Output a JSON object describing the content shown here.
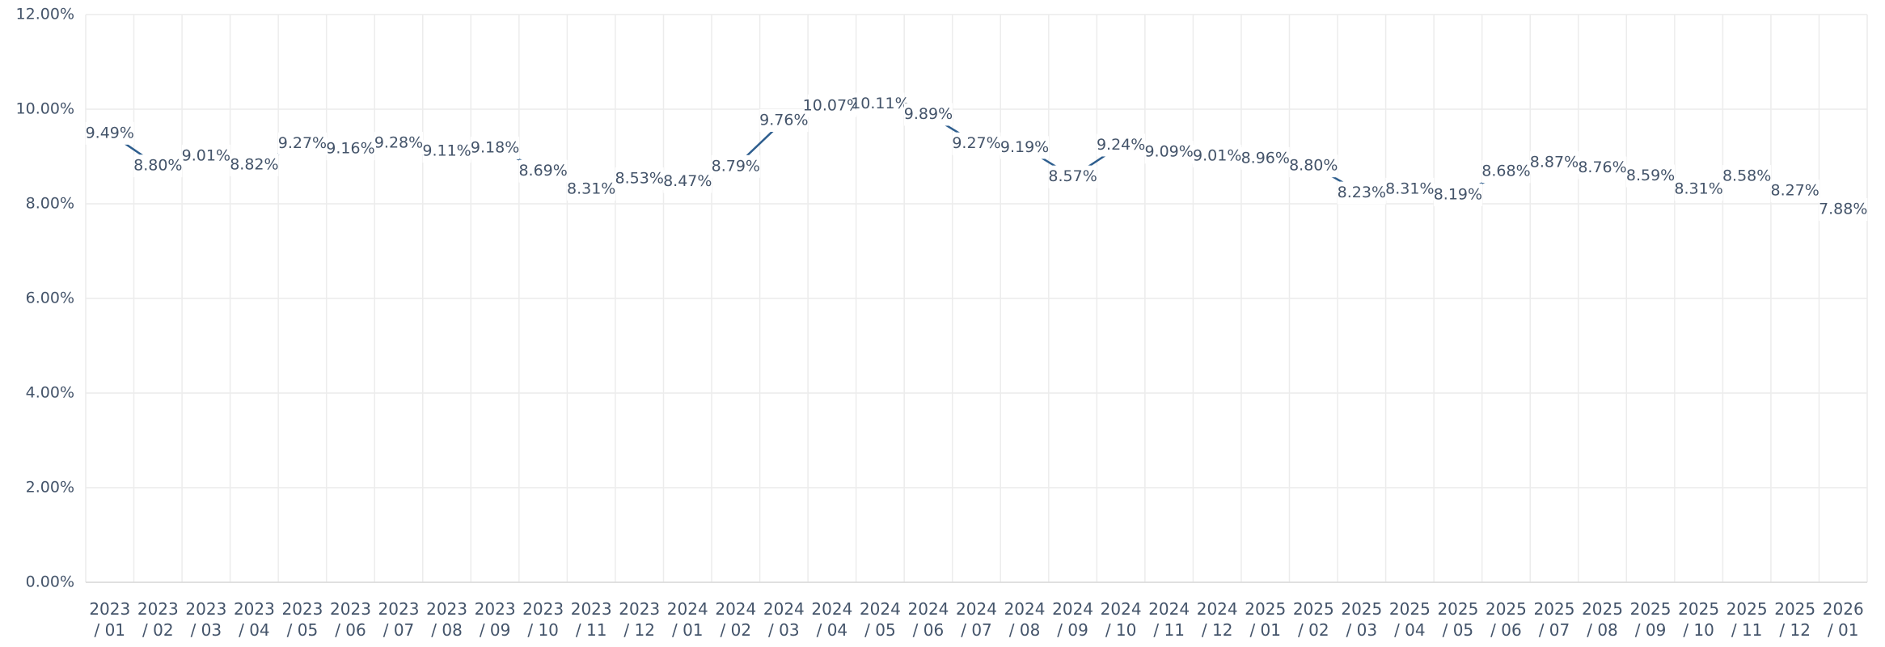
{
  "chart_data": {
    "type": "line",
    "categories": [
      "2023\n/ 01",
      "2023\n/ 02",
      "2023\n/ 03",
      "2023\n/ 04",
      "2023\n/ 05",
      "2023\n/ 06",
      "2023\n/ 07",
      "2023\n/ 08",
      "2023\n/ 09",
      "2023\n/ 10",
      "2023\n/ 11",
      "2023\n/ 12",
      "2024\n/ 01",
      "2024\n/ 02",
      "2024\n/ 03",
      "2024\n/ 04",
      "2024\n/ 05",
      "2024\n/ 06",
      "2024\n/ 07",
      "2024\n/ 08",
      "2024\n/ 09",
      "2024\n/ 10",
      "2024\n/ 11",
      "2024\n/ 12",
      "2025\n/ 01",
      "2025\n/ 02",
      "2025\n/ 03",
      "2025\n/ 04",
      "2025\n/ 05",
      "2025\n/ 06",
      "2025\n/ 07",
      "2025\n/ 08",
      "2025\n/ 09",
      "2025\n/ 10",
      "2025\n/ 11",
      "2025\n/ 12",
      "2026\n/ 01"
    ],
    "values": [
      9.49,
      8.8,
      9.01,
      8.82,
      9.27,
      9.16,
      9.28,
      9.11,
      9.18,
      8.69,
      8.31,
      8.53,
      8.47,
      8.79,
      9.76,
      10.07,
      10.11,
      9.89,
      9.27,
      9.19,
      8.57,
      9.24,
      9.09,
      9.01,
      8.96,
      8.8,
      8.23,
      8.31,
      8.19,
      8.68,
      8.87,
      8.76,
      8.59,
      8.31,
      8.58,
      8.27,
      7.88
    ],
    "value_labels": [
      "9.49%",
      "8.80%",
      "9.01%",
      "8.82%",
      "9.27%",
      "9.16%",
      "9.28%",
      "9.11%",
      "9.18%",
      "8.69%",
      "8.31%",
      "8.53%",
      "8.47%",
      "8.79%",
      "9.76%",
      "10.07%",
      "10.11%",
      "9.89%",
      "9.27%",
      "9.19%",
      "8.57%",
      "9.24%",
      "9.09%",
      "9.01%",
      "8.96%",
      "8.80%",
      "8.23%",
      "8.31%",
      "8.19%",
      "8.68%",
      "8.87%",
      "8.76%",
      "8.59%",
      "8.31%",
      "8.58%",
      "8.27%",
      "7.88%"
    ],
    "color": "#2e5e8e",
    "ylim": [
      0,
      12
    ],
    "yticks": [
      {
        "value": 0,
        "label": "0.00%"
      },
      {
        "value": 2,
        "label": "2.00%"
      },
      {
        "value": 4,
        "label": "4.00%"
      },
      {
        "value": 6,
        "label": "6.00%"
      },
      {
        "value": 8,
        "label": "8.00%"
      },
      {
        "value": 10,
        "label": "10.00%"
      },
      {
        "value": 12,
        "label": "12.00%"
      }
    ],
    "grid": true
  }
}
